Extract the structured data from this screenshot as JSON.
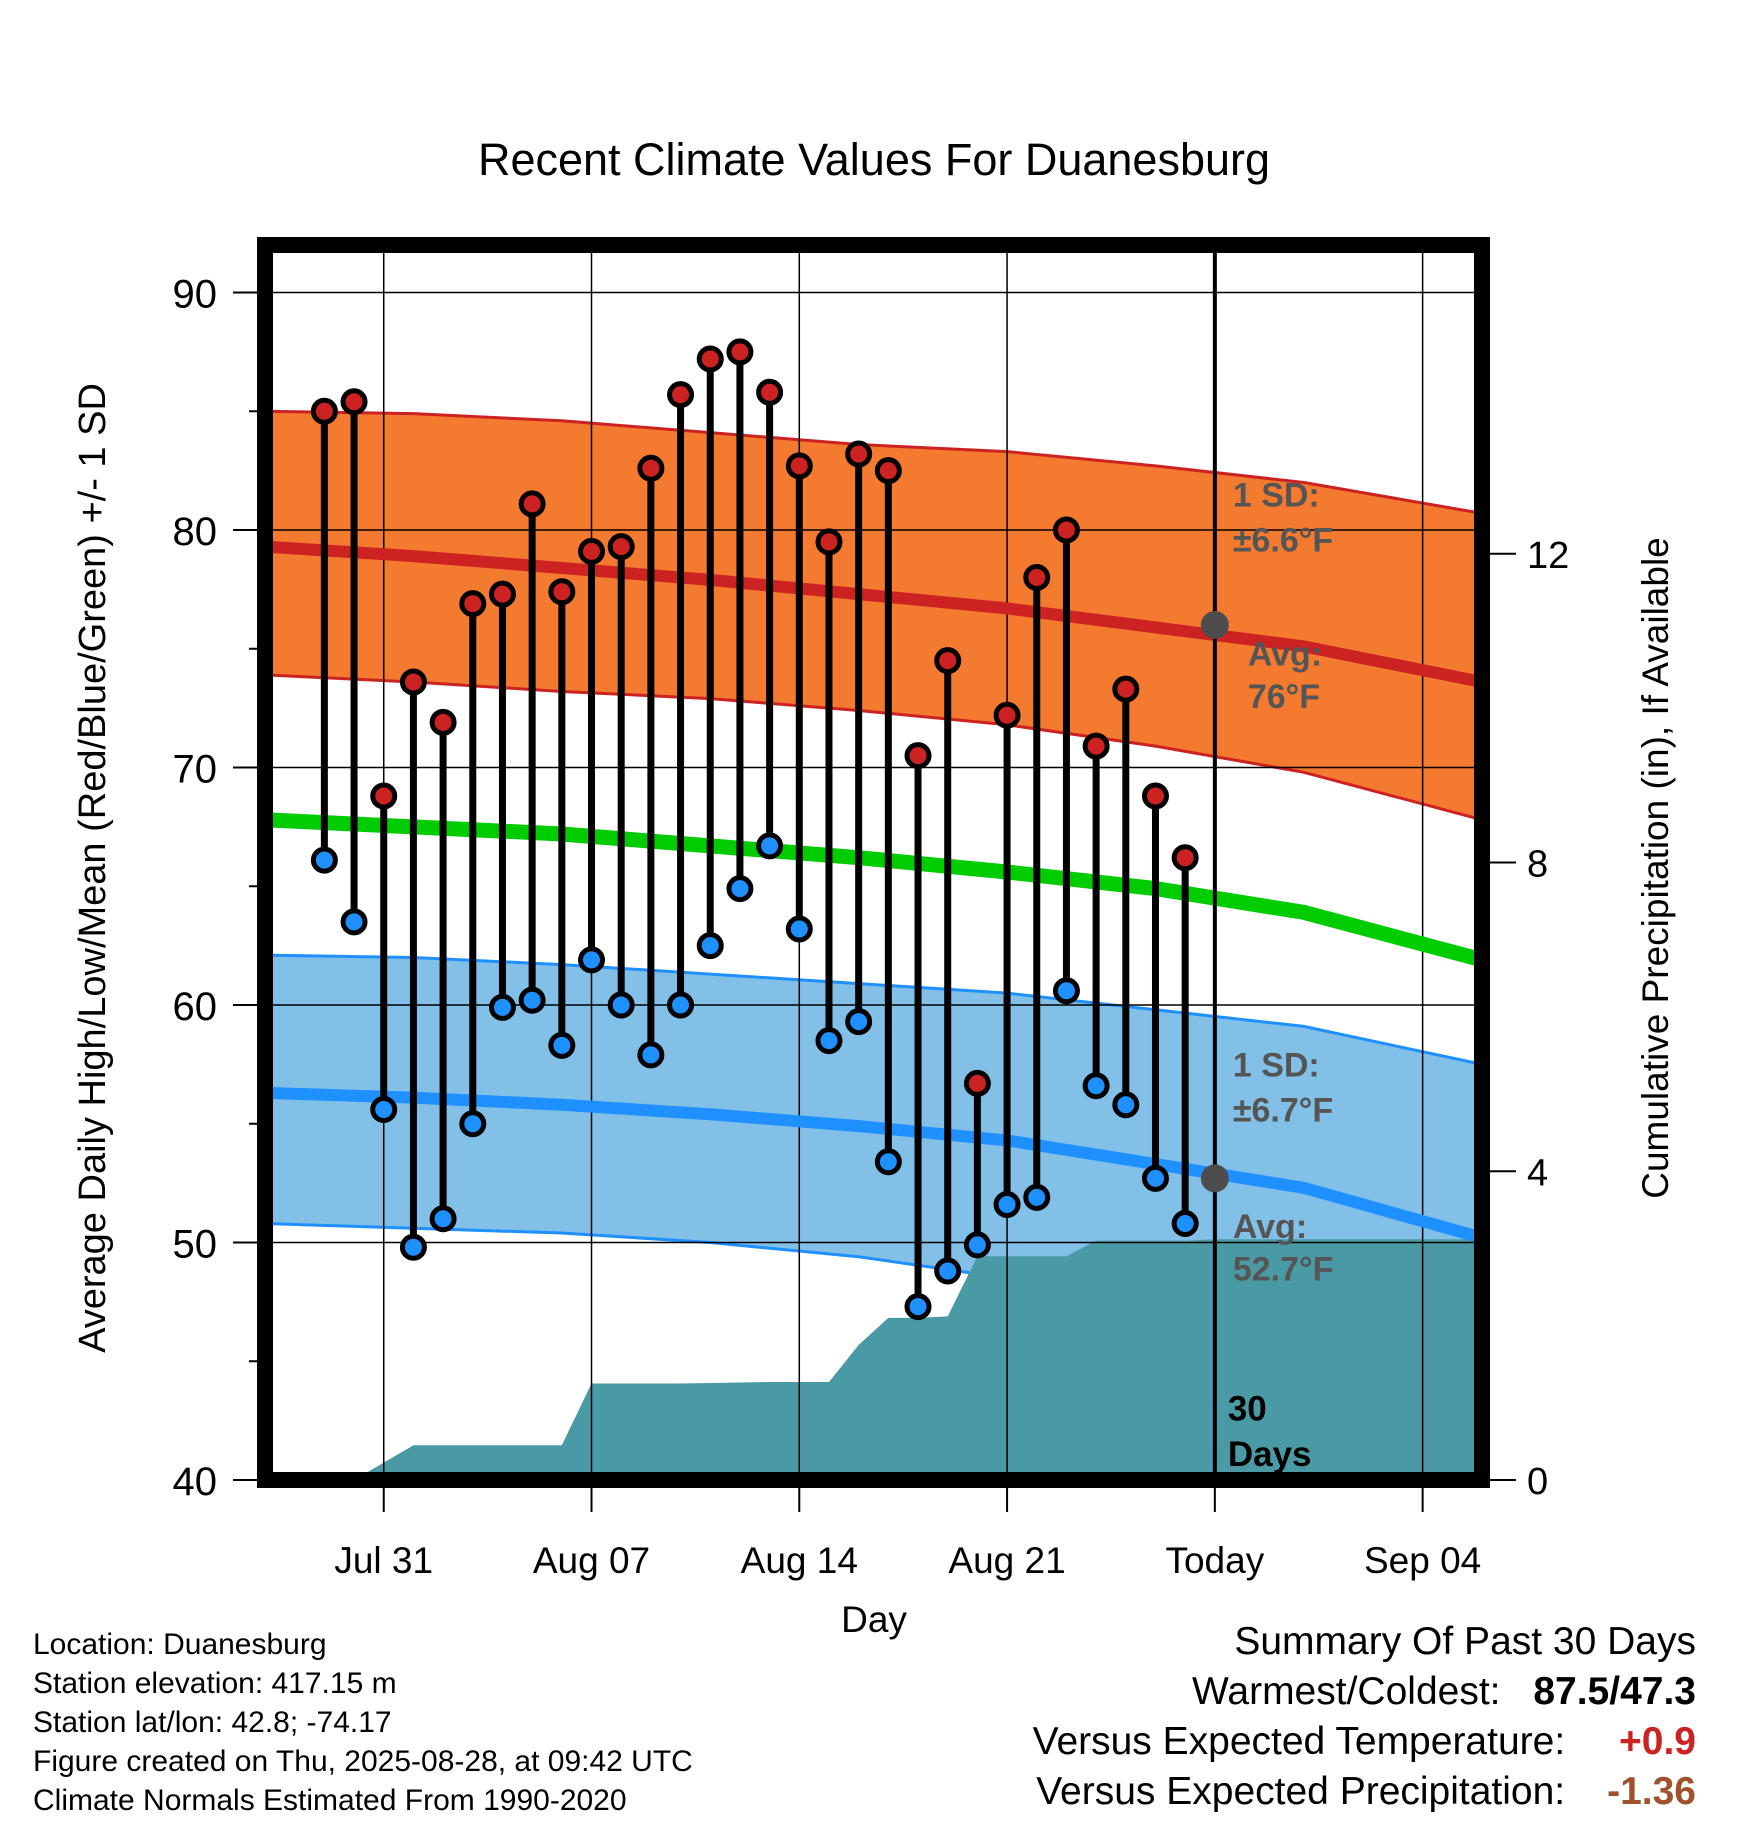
{
  "chart_data": {
    "type": "line",
    "title": "Recent Climate Values For Duanesburg",
    "xlabel": "Day",
    "ylabel": "Average Daily High/Low/Mean (Red/Blue/Green) +/- 1 SD",
    "y2label": "Cumulative Precipitation (in), If Available",
    "ylim": [
      40,
      92
    ],
    "y_ticks": [
      "40",
      "50",
      "60",
      "70",
      "80",
      "90"
    ],
    "y2lim": [
      0,
      16
    ],
    "y2_ticks": [
      "0",
      "4",
      "8",
      "12"
    ],
    "x_ticks": [
      {
        "day": "2025-07-31",
        "label": "Jul 31"
      },
      {
        "day": "2025-08-07",
        "label": "Aug 07"
      },
      {
        "day": "2025-08-14",
        "label": "Aug 14"
      },
      {
        "day": "2025-08-21",
        "label": "Aug 21"
      },
      {
        "day": "2025-08-28",
        "label": "Today"
      },
      {
        "day": "2025-09-04",
        "label": "Sep 04"
      }
    ],
    "x_range": [
      "2025-07-27",
      "2025-09-06"
    ],
    "today": "2025-08-28",
    "grid": true,
    "days": [
      "2025-07-29",
      "2025-07-30",
      "2025-07-31",
      "2025-08-01",
      "2025-08-02",
      "2025-08-03",
      "2025-08-04",
      "2025-08-05",
      "2025-08-06",
      "2025-08-07",
      "2025-08-08",
      "2025-08-09",
      "2025-08-10",
      "2025-08-11",
      "2025-08-12",
      "2025-08-13",
      "2025-08-14",
      "2025-08-15",
      "2025-08-16",
      "2025-08-17",
      "2025-08-18",
      "2025-08-19",
      "2025-08-20",
      "2025-08-21",
      "2025-08-22",
      "2025-08-23",
      "2025-08-24",
      "2025-08-25",
      "2025-08-26",
      "2025-08-27"
    ],
    "series": [
      {
        "name": "High",
        "color": "#cc2222",
        "values": [
          85.0,
          85.4,
          68.8,
          73.6,
          71.9,
          76.9,
          77.3,
          81.1,
          77.4,
          79.1,
          79.3,
          82.6,
          85.7,
          87.2,
          87.5,
          85.8,
          82.7,
          79.5,
          83.2,
          82.5,
          70.5,
          74.5,
          56.7,
          72.2,
          78.0,
          80.0,
          70.9,
          73.3,
          68.8,
          66.2
        ]
      },
      {
        "name": "Low",
        "color": "#1e90ff",
        "values": [
          66.1,
          63.5,
          55.6,
          49.8,
          51.0,
          55.0,
          59.9,
          60.2,
          58.3,
          61.9,
          60.0,
          57.9,
          60.0,
          62.5,
          64.9,
          66.7,
          63.2,
          58.5,
          59.3,
          53.4,
          47.3,
          48.8,
          49.9,
          51.6,
          51.9,
          60.6,
          56.6,
          55.8,
          52.7,
          50.8
        ]
      }
    ],
    "normals": {
      "days": [
        "2025-07-27",
        "2025-08-01",
        "2025-08-06",
        "2025-08-11",
        "2025-08-16",
        "2025-08-21",
        "2025-08-26",
        "2025-08-31",
        "2025-09-06"
      ],
      "high_avg": [
        79.3,
        78.9,
        78.4,
        77.9,
        77.3,
        76.7,
        75.9,
        75.1,
        73.6
      ],
      "high_upper": [
        85.0,
        84.9,
        84.6,
        84.1,
        83.6,
        83.3,
        82.7,
        82.0,
        80.7
      ],
      "high_lower": [
        73.9,
        73.6,
        73.2,
        72.9,
        72.4,
        71.8,
        70.9,
        69.8,
        67.8
      ],
      "mean_avg": [
        67.8,
        67.5,
        67.2,
        66.7,
        66.2,
        65.6,
        64.9,
        63.9,
        61.9
      ],
      "low_avg": [
        56.3,
        56.1,
        55.8,
        55.4,
        54.9,
        54.3,
        53.3,
        52.3,
        50.2
      ],
      "low_upper": [
        62.1,
        62.0,
        61.7,
        61.3,
        60.9,
        60.5,
        59.8,
        59.1,
        57.5
      ],
      "low_lower": [
        50.8,
        50.6,
        50.4,
        50.0,
        49.4,
        48.5,
        47.5,
        45.9,
        43.9
      ],
      "high_sd_label": "1 SD:",
      "high_sd_value": "±6.6°F",
      "high_avg_label": "Avg:",
      "high_avg_value": "76°F",
      "low_sd_label": "1 SD:",
      "low_sd_value": "±6.7°F",
      "low_avg_label": "Avg:",
      "low_avg_value": "52.7°F",
      "today_high_avg": 76.0,
      "today_low_avg": 52.7
    },
    "precipitation": {
      "color": "#4a9aa5",
      "days": [
        "2025-07-27",
        "2025-07-29",
        "2025-07-30",
        "2025-08-01",
        "2025-08-02",
        "2025-08-03",
        "2025-08-04",
        "2025-08-05",
        "2025-08-06",
        "2025-08-07",
        "2025-08-10",
        "2025-08-13",
        "2025-08-14",
        "2025-08-15",
        "2025-08-16",
        "2025-08-17",
        "2025-08-18",
        "2025-08-19",
        "2025-08-20",
        "2025-08-21",
        "2025-08-23",
        "2025-08-24",
        "2025-08-27",
        "2025-08-28",
        "2025-09-06"
      ],
      "values": [
        0,
        0,
        0,
        0.45,
        0.45,
        0.45,
        0.45,
        0.45,
        0.45,
        1.25,
        1.25,
        1.27,
        1.27,
        1.27,
        1.75,
        2.1,
        2.1,
        2.12,
        2.9,
        2.9,
        2.9,
        3.1,
        3.1,
        3.12,
        3.12
      ]
    },
    "window_label": "30 Days",
    "colors": {
      "high_band": "#f47a30",
      "high_line": "#cc2222",
      "mean_line": "#00cc00",
      "low_band": "#82c0e8",
      "low_line": "#1e90ff",
      "avg_marker": "#4d4d4d",
      "note_text": "#555555"
    }
  },
  "info": {
    "location": "Location: Duanesburg",
    "elevation": "Station elevation: 417.15 m",
    "latlon": "Station lat/lon: 42.8; -74.17",
    "created": "Figure created on Thu, 2025-08-28, at 09:42 UTC",
    "normals": "Climate Normals Estimated From 1990-2020"
  },
  "summary": {
    "title": "Summary Of Past 30 Days",
    "warm_cold_label": "Warmest/Coldest:",
    "warm_cold_value": "87.5/47.3",
    "temp_label": "Versus Expected Temperature:",
    "temp_value": "+0.9",
    "temp_color": "#cc2222",
    "precip_label": "Versus Expected Precipitation:",
    "precip_value": "-1.36",
    "precip_color": "#a0522d"
  }
}
